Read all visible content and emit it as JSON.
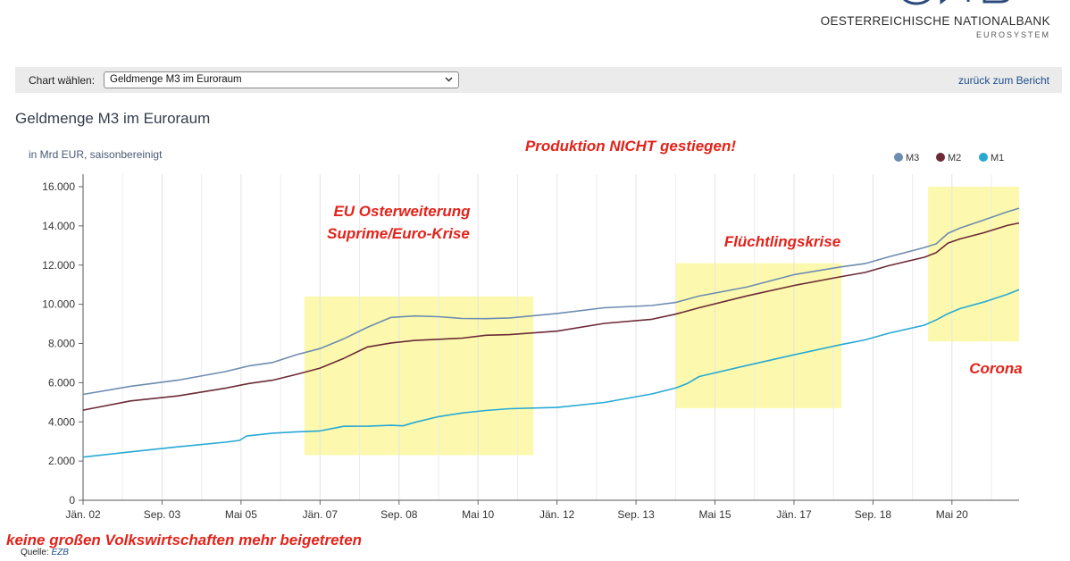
{
  "header": {
    "logo_name": "OESTERREICHISCHE NATIONALBANK",
    "logo_sub": "EUROSYSTEM"
  },
  "toolbar": {
    "label": "Chart wählen:",
    "select_value": "Geldmenge M3 im Euroraum",
    "back_link": "zurück zum Bericht"
  },
  "chart_title": "Geldmenge M3 im Euroraum",
  "source": {
    "label": "Quelle:",
    "link": "EZB"
  },
  "colors": {
    "M3": "#6d8cb0",
    "M2": "#6b2a36",
    "M1": "#27a9d4",
    "highlight": "#fbf8a0",
    "annotation": "#e2231a"
  },
  "chart_data": {
    "type": "line",
    "subtitle": "in Mrd EUR, saisonbereinigt",
    "ylim": [
      0,
      16000
    ],
    "yticks": [
      0,
      2000,
      4000,
      6000,
      8000,
      10000,
      12000,
      14000,
      16000
    ],
    "ytick_labels": [
      "0",
      "2.000",
      "4.000",
      "6.000",
      "8.000",
      "10.000",
      "12.000",
      "14.000",
      "16.000"
    ],
    "xlim": [
      2002.0,
      2021.75
    ],
    "xticks": [
      2002.0,
      2003.667,
      2005.333,
      2007.0,
      2008.667,
      2010.333,
      2012.0,
      2013.667,
      2015.333,
      2017.0,
      2018.667,
      2020.333
    ],
    "xtick_labels": [
      "Jän. 02",
      "Sep. 03",
      "Mai 05",
      "Jän. 07",
      "Sep. 08",
      "Mai 10",
      "Jän. 12",
      "Sep. 13",
      "Mai 15",
      "Jän. 17",
      "Sep. 18",
      "Mai 20"
    ],
    "grid": "vertical",
    "legend_placement": "top-right",
    "series": [
      {
        "name": "M3",
        "x": [
          2002.0,
          2003.0,
          2004.0,
          2005.0,
          2005.5,
          2006.0,
          2006.5,
          2007.0,
          2007.5,
          2008.0,
          2008.5,
          2009.0,
          2009.5,
          2010.0,
          2010.5,
          2011.0,
          2012.0,
          2013.0,
          2014.0,
          2014.5,
          2015.0,
          2016.0,
          2017.0,
          2018.0,
          2018.5,
          2019.0,
          2019.75,
          2020.0,
          2020.25,
          2020.5,
          2021.0,
          2021.5,
          2021.75
        ],
        "y": [
          5400,
          5800,
          6150,
          6550,
          6850,
          7050,
          7400,
          7750,
          8250,
          8800,
          9350,
          9400,
          9350,
          9300,
          9250,
          9300,
          9550,
          9800,
          9950,
          10100,
          10400,
          10900,
          11500,
          11900,
          12100,
          12400,
          12900,
          13100,
          13600,
          13900,
          14300,
          14700,
          14900
        ]
      },
      {
        "name": "M2",
        "x": [
          2002.0,
          2003.0,
          2004.0,
          2005.0,
          2005.5,
          2006.0,
          2006.5,
          2007.0,
          2007.5,
          2008.0,
          2008.5,
          2009.0,
          2009.5,
          2010.0,
          2010.5,
          2011.0,
          2012.0,
          2013.0,
          2014.0,
          2014.5,
          2015.0,
          2016.0,
          2017.0,
          2018.0,
          2018.5,
          2019.0,
          2019.75,
          2020.0,
          2020.25,
          2020.5,
          2021.0,
          2021.5,
          2021.75
        ],
        "y": [
          4600,
          5050,
          5350,
          5700,
          5950,
          6150,
          6400,
          6750,
          7250,
          7800,
          8050,
          8150,
          8200,
          8300,
          8400,
          8450,
          8650,
          9000,
          9250,
          9500,
          9800,
          10450,
          10950,
          11400,
          11650,
          11950,
          12400,
          12650,
          13100,
          13350,
          13650,
          14000,
          14150
        ]
      },
      {
        "name": "M1",
        "x": [
          2002.0,
          2003.0,
          2004.0,
          2005.0,
          2005.3,
          2005.45,
          2006.0,
          2006.5,
          2007.0,
          2007.5,
          2008.0,
          2008.5,
          2008.75,
          2009.0,
          2009.5,
          2010.0,
          2010.5,
          2011.0,
          2012.0,
          2013.0,
          2014.0,
          2014.5,
          2014.75,
          2015.0,
          2016.0,
          2017.0,
          2018.0,
          2018.5,
          2019.0,
          2019.75,
          2020.0,
          2020.25,
          2020.5,
          2021.0,
          2021.5,
          2021.75
        ],
        "y": [
          2200,
          2450,
          2750,
          2950,
          3050,
          3300,
          3400,
          3500,
          3550,
          3750,
          3800,
          3820,
          3780,
          4000,
          4250,
          4450,
          4600,
          4650,
          4750,
          5000,
          5400,
          5750,
          5950,
          6300,
          6900,
          7400,
          7950,
          8200,
          8500,
          8950,
          9200,
          9500,
          9800,
          10100,
          10500,
          10750
        ]
      }
    ],
    "highlights": [
      {
        "x0": 2006.67,
        "x1": 2011.5,
        "y0": 2300,
        "y1": 10400
      },
      {
        "x0": 2014.5,
        "x1": 2018.0,
        "y0": 4700,
        "y1": 12100
      },
      {
        "x0": 2019.83,
        "x1": 2021.75,
        "y0": 8100,
        "y1": 16000
      }
    ],
    "annotations": [
      {
        "text": "Produktion NICHT gestiegen!"
      },
      {
        "text": "EU Osterweiterung"
      },
      {
        "text": "Suprime/Euro-Krise"
      },
      {
        "text": "Flüchtlingskrise"
      },
      {
        "text": "Corona"
      },
      {
        "text": "keine großen Volkswirtschaften mehr beigetreten"
      }
    ]
  }
}
